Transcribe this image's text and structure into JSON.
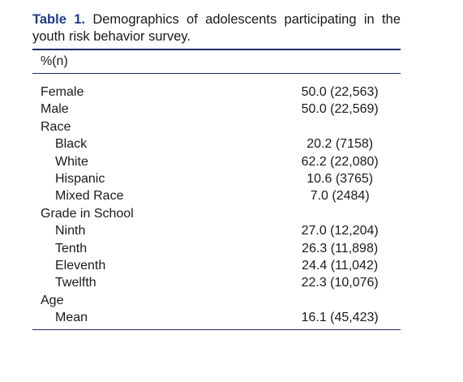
{
  "caption": {
    "label": "Table 1.",
    "text": "Demographics of adolescents participating in the youth risk behavior survey."
  },
  "header": {
    "column_unit": "%(n)"
  },
  "rows": [
    {
      "label": "Female",
      "value": "50.0 (22,563)",
      "indent": false
    },
    {
      "label": "Male",
      "value": "50.0 (22,569)",
      "indent": false
    },
    {
      "label": "Race",
      "value": "",
      "indent": false
    },
    {
      "label": "Black",
      "value": "20.2 (7158)",
      "indent": true
    },
    {
      "label": "White",
      "value": "62.2 (22,080)",
      "indent": true
    },
    {
      "label": "Hispanic",
      "value": "10.6 (3765)",
      "indent": true
    },
    {
      "label": "Mixed Race",
      "value": "7.0 (2484)",
      "indent": true
    },
    {
      "label": "Grade in School",
      "value": "",
      "indent": false
    },
    {
      "label": "Ninth",
      "value": "27.0 (12,204)",
      "indent": true
    },
    {
      "label": "Tenth",
      "value": "26.3 (11,898)",
      "indent": true
    },
    {
      "label": "Eleventh",
      "value": "24.4 (11,042)",
      "indent": true
    },
    {
      "label": "Twelfth",
      "value": "22.3 (10,076)",
      "indent": true
    },
    {
      "label": "Age",
      "value": "",
      "indent": false
    },
    {
      "label": "Mean",
      "value": "16.1 (45,423)",
      "indent": true
    }
  ],
  "colors": {
    "caption_label": "#1f3a8a",
    "rules": "#1f2b6b",
    "text": "#1a1a1a"
  }
}
